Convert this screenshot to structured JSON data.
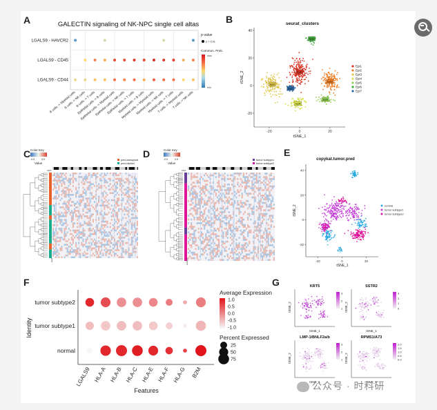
{
  "panel_labels": {
    "A": "A",
    "B": "B",
    "C": "C",
    "D": "D",
    "E": "E",
    "F": "F",
    "G": "G"
  },
  "watermark": "公众号 · 时科研",
  "chart_data": [
    {
      "type": "scatter",
      "panel": "A",
      "title": "GALECTIN signaling of NK-NPC single cell altas",
      "rows": [
        "LGALS9 - HAVCR2",
        "LGALS9 - CD45",
        "LGALS9 - CD44"
      ],
      "columns": [
        "B cells -> Myeloid cells",
        "B cells -> NK cells",
        "B cells -> T cells",
        "Epithelial cells -> B cells",
        "Epithelial cells -> Myeloid cells",
        "Epithelial cells -> NK cells",
        "Epithelial cells -> T cells",
        "Myeloid cells -> B cells",
        "Myeloid cells -> Myeloid cells",
        "Myeloid cells -> NK cells",
        "Myeloid cells -> T cells",
        "T cells -> Myeloid cells",
        "T cells -> NK cells"
      ],
      "points": [
        [
          0,
          0,
          0.1
        ],
        [
          3,
          0,
          0.4
        ],
        [
          9,
          0,
          0.4
        ],
        [
          12,
          0,
          0.1
        ],
        [
          1,
          1,
          0.5
        ],
        [
          2,
          1,
          0.7
        ],
        [
          3,
          1,
          0.6
        ],
        [
          4,
          1,
          0.85
        ],
        [
          5,
          1,
          0.85
        ],
        [
          6,
          1,
          0.9
        ],
        [
          7,
          1,
          0.85
        ],
        [
          8,
          1,
          0.95
        ],
        [
          9,
          1,
          0.9
        ],
        [
          10,
          1,
          0.9
        ],
        [
          11,
          1,
          0.6
        ],
        [
          12,
          1,
          0.7
        ],
        [
          0,
          2,
          0.45
        ],
        [
          1,
          2,
          0.45
        ],
        [
          2,
          2,
          0.55
        ],
        [
          3,
          2,
          0.55
        ],
        [
          4,
          2,
          0.75
        ],
        [
          5,
          2,
          0.7
        ],
        [
          6,
          2,
          0.75
        ],
        [
          7,
          2,
          0.6
        ],
        [
          8,
          2,
          0.8
        ],
        [
          9,
          2,
          0.75
        ],
        [
          10,
          2,
          0.75
        ],
        [
          11,
          2,
          0.5
        ],
        [
          12,
          2,
          0.55
        ]
      ],
      "legend": {
        "pvalue_title": "p-value",
        "pvalue_label": "p < 0.01",
        "color_title": "Commun. Prob.",
        "color_max": "max",
        "color_min": "min"
      }
    },
    {
      "type": "scatter",
      "panel": "B",
      "title": "seurat_clusters",
      "xlabel": "tSNE_1",
      "ylabel": "tSNE_2",
      "xlim": [
        -30,
        30
      ],
      "ylim": [
        -30,
        42
      ],
      "xticks": [
        -20,
        0,
        20
      ],
      "yticks": [
        -20,
        0,
        20,
        40
      ],
      "clusters": [
        {
          "name": "Epi1",
          "color": "#d7301f",
          "center": [
            0,
            10
          ],
          "spread": [
            6,
            9
          ],
          "n": 200
        },
        {
          "name": "Epi2",
          "color": "#f17c21",
          "center": [
            20,
            3
          ],
          "spread": [
            6,
            7
          ],
          "n": 140
        },
        {
          "name": "Epi3",
          "color": "#e0c64a",
          "center": [
            -18,
            1
          ],
          "spread": [
            6,
            8
          ],
          "n": 130
        },
        {
          "name": "Epi4",
          "color": "#d7e04a",
          "center": [
            -1,
            -13
          ],
          "spread": [
            6,
            4
          ],
          "n": 80
        },
        {
          "name": "Epi5",
          "color": "#8fd050",
          "center": [
            17,
            -10
          ],
          "spread": [
            5,
            3
          ],
          "n": 50
        },
        {
          "name": "Epi6",
          "color": "#3fa83a",
          "center": [
            8,
            34
          ],
          "spread": [
            3,
            3
          ],
          "n": 40
        },
        {
          "name": "Epi7",
          "color": "#2b6aa8",
          "center": [
            -6,
            -2
          ],
          "spread": [
            3,
            2
          ],
          "n": 45
        }
      ],
      "legend_position": "right"
    },
    {
      "type": "heatmap",
      "panel": "C",
      "legend": {
        "title": "Color Key",
        "min": "-0.5",
        "max": "0.5",
        "value_label": "Value"
      },
      "annotation_legend": [
        "pred.aneuploid",
        "pred.diploid"
      ],
      "annotation_colors": [
        "#e8602c",
        "#1aaa8c"
      ],
      "row_label": "pred",
      "top_label": "CNS"
    },
    {
      "type": "heatmap",
      "panel": "D",
      "legend": {
        "title": "Color Key",
        "min": "-0.5",
        "max": "0.5",
        "value_label": "Value"
      },
      "annotation_legend": [
        "tumor subtype1",
        "tumor subtype2"
      ],
      "annotation_colors": [
        "#6a3d9a",
        "#e0119a"
      ],
      "row_label": "subtype",
      "top_label": "CNS"
    },
    {
      "type": "scatter",
      "panel": "E",
      "title": "copykat.tumor.pred",
      "xlabel": "tSNE_1",
      "ylabel": "tSNE_2",
      "xticks": [
        -20,
        0,
        20
      ],
      "yticks": [
        -20,
        0,
        20,
        40
      ],
      "groups": [
        {
          "name": "normal",
          "color": "#29a9e1"
        },
        {
          "name": "tumor subtype1",
          "color": "#c33bd9"
        },
        {
          "name": "tumor subtype2",
          "color": "#e0119a"
        }
      ]
    },
    {
      "type": "scatter",
      "panel": "F",
      "title": "",
      "xlabel": "Features",
      "ylabel": "Identity",
      "categories": [
        "LGALS9",
        "HLA-A",
        "HLA-B",
        "HLA-C",
        "HLA-E",
        "HLA-F",
        "HLA-G",
        "B2M"
      ],
      "rows": [
        "tumor subtype2",
        "tumor subtype1",
        "normal"
      ],
      "series": [
        {
          "name": "tumor subtype2",
          "avg_expr": [
            1.2,
            0.8,
            0.1,
            0.1,
            0.2,
            0.3,
            -0.2,
            0.3
          ],
          "pct_expr": [
            45,
            60,
            55,
            55,
            45,
            25,
            5,
            60
          ]
        },
        {
          "name": "tumor subtype1",
          "avg_expr": [
            -0.4,
            -0.5,
            -0.4,
            -0.4,
            -0.5,
            -0.6,
            -0.9,
            -0.3
          ],
          "pct_expr": [
            40,
            55,
            55,
            55,
            45,
            25,
            5,
            65
          ]
        },
        {
          "name": "normal",
          "avg_expr": [
            -1.0,
            1.2,
            1.2,
            1.3,
            1.2,
            1.1,
            0.9,
            1.4
          ],
          "pct_expr": [
            15,
            70,
            80,
            75,
            60,
            30,
            5,
            80
          ]
        }
      ],
      "legend": {
        "color_title": "Average Expression",
        "color_ticks": [
          "1.0",
          "0.5",
          "0.0",
          "-0.5",
          "-1.0"
        ],
        "size_title": "Percent Expressed",
        "size_values": [
          25,
          50,
          75
        ]
      }
    },
    {
      "type": "scatter",
      "panel": "G",
      "subplots": [
        {
          "title": "KRT5",
          "xlabel": "tSNE_1",
          "ylabel": "tSNE_2",
          "scale": [
            "3",
            "2",
            "1"
          ]
        },
        {
          "title": "SSTR2",
          "xlabel": "tSNE_1",
          "ylabel": "tSNE_2",
          "scale": [
            "3",
            "2",
            "1",
            "0"
          ]
        },
        {
          "title": "LMP-1/BNLF2a/b",
          "xlabel": "tSNE_1",
          "ylabel": "tSNE_2",
          "scale": [
            "3",
            "2",
            "1"
          ]
        },
        {
          "title": "RPMS1/A73",
          "xlabel": "tSNE_1",
          "ylabel": "tSNE_2",
          "scale": [
            "2.0",
            "1.5",
            "1.0",
            "0.5",
            "0.0"
          ]
        }
      ]
    }
  ]
}
